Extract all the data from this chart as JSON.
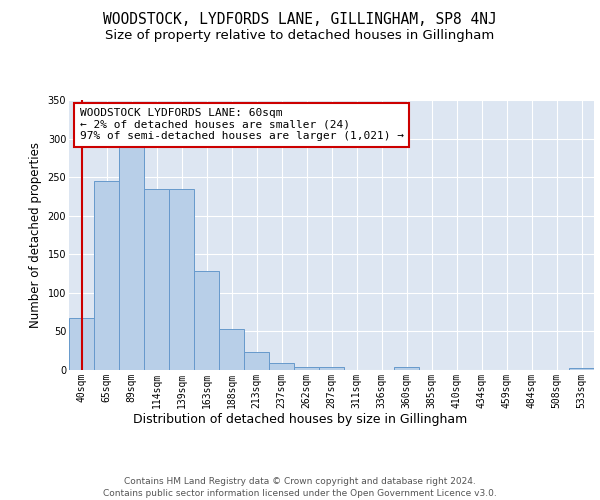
{
  "title": "WOODSTOCK, LYDFORDS LANE, GILLINGHAM, SP8 4NJ",
  "subtitle": "Size of property relative to detached houses in Gillingham",
  "xlabel": "Distribution of detached houses by size in Gillingham",
  "ylabel": "Number of detached properties",
  "categories": [
    "40sqm",
    "65sqm",
    "89sqm",
    "114sqm",
    "139sqm",
    "163sqm",
    "188sqm",
    "213sqm",
    "237sqm",
    "262sqm",
    "287sqm",
    "311sqm",
    "336sqm",
    "360sqm",
    "385sqm",
    "410sqm",
    "434sqm",
    "459sqm",
    "484sqm",
    "508sqm",
    "533sqm"
  ],
  "values": [
    68,
    245,
    290,
    235,
    235,
    128,
    53,
    23,
    9,
    4,
    4,
    0,
    0,
    4,
    0,
    0,
    0,
    0,
    0,
    0,
    3
  ],
  "bar_color": "#b8cfe8",
  "bar_edge_color": "#6699cc",
  "highlight_line_color": "#cc0000",
  "annotation_text": "WOODSTOCK LYDFORDS LANE: 60sqm\n← 2% of detached houses are smaller (24)\n97% of semi-detached houses are larger (1,021) →",
  "annotation_box_color": "#ffffff",
  "annotation_box_edge_color": "#cc0000",
  "ylim": [
    0,
    350
  ],
  "yticks": [
    0,
    50,
    100,
    150,
    200,
    250,
    300,
    350
  ],
  "background_color": "#dde6f2",
  "grid_color": "#ffffff",
  "footer_text": "Contains HM Land Registry data © Crown copyright and database right 2024.\nContains public sector information licensed under the Open Government Licence v3.0.",
  "title_fontsize": 10.5,
  "subtitle_fontsize": 9.5,
  "xlabel_fontsize": 9,
  "ylabel_fontsize": 8.5,
  "tick_fontsize": 7,
  "annotation_fontsize": 8,
  "footer_fontsize": 6.5
}
